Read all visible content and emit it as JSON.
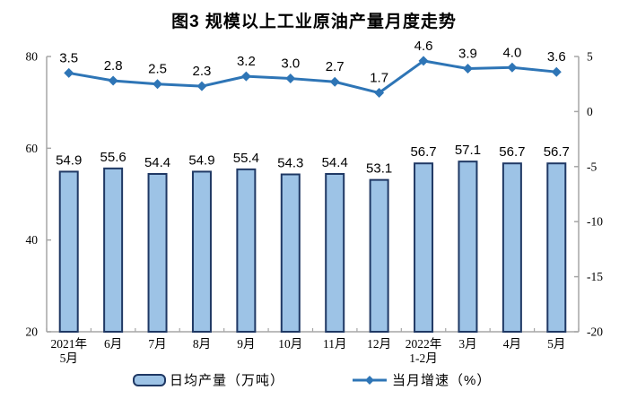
{
  "title": "图3 规模以上工业原油产量月度走势",
  "legend": {
    "bar_label": "日均产量（万吨）",
    "line_label": "当月增速（%）"
  },
  "colors": {
    "bar_fill": "#9DC3E6",
    "bar_stroke": "#1F3864",
    "line": "#2E75B6",
    "axis": "#A6A6A6",
    "text": "#000000"
  },
  "chart_data": {
    "type": "bar+line",
    "title": "图3 规模以上工业原油产量月度走势",
    "categories": [
      "2021年\n5月",
      "6月",
      "7月",
      "8月",
      "9月",
      "10月",
      "11月",
      "12月",
      "2022年\n1-2月",
      "3月",
      "4月",
      "5月"
    ],
    "series": [
      {
        "name": "日均产量（万吨）",
        "type": "bar",
        "axis": "left",
        "values": [
          54.9,
          55.6,
          54.4,
          54.9,
          55.4,
          54.3,
          54.4,
          53.1,
          56.7,
          57.1,
          56.7,
          56.7
        ]
      },
      {
        "name": "当月增速（%）",
        "type": "line",
        "axis": "right",
        "values": [
          3.5,
          2.8,
          2.5,
          2.3,
          3.2,
          3.0,
          2.7,
          1.7,
          4.6,
          3.9,
          4.0,
          3.6
        ]
      }
    ],
    "left_axis": {
      "min": 20,
      "max": 80,
      "ticks": [
        80,
        60,
        40,
        20
      ]
    },
    "right_axis": {
      "min": -20,
      "max": 5,
      "ticks": [
        5,
        0,
        -5,
        -10,
        -15,
        -20
      ]
    },
    "grid": false,
    "legend_position": "bottom"
  }
}
